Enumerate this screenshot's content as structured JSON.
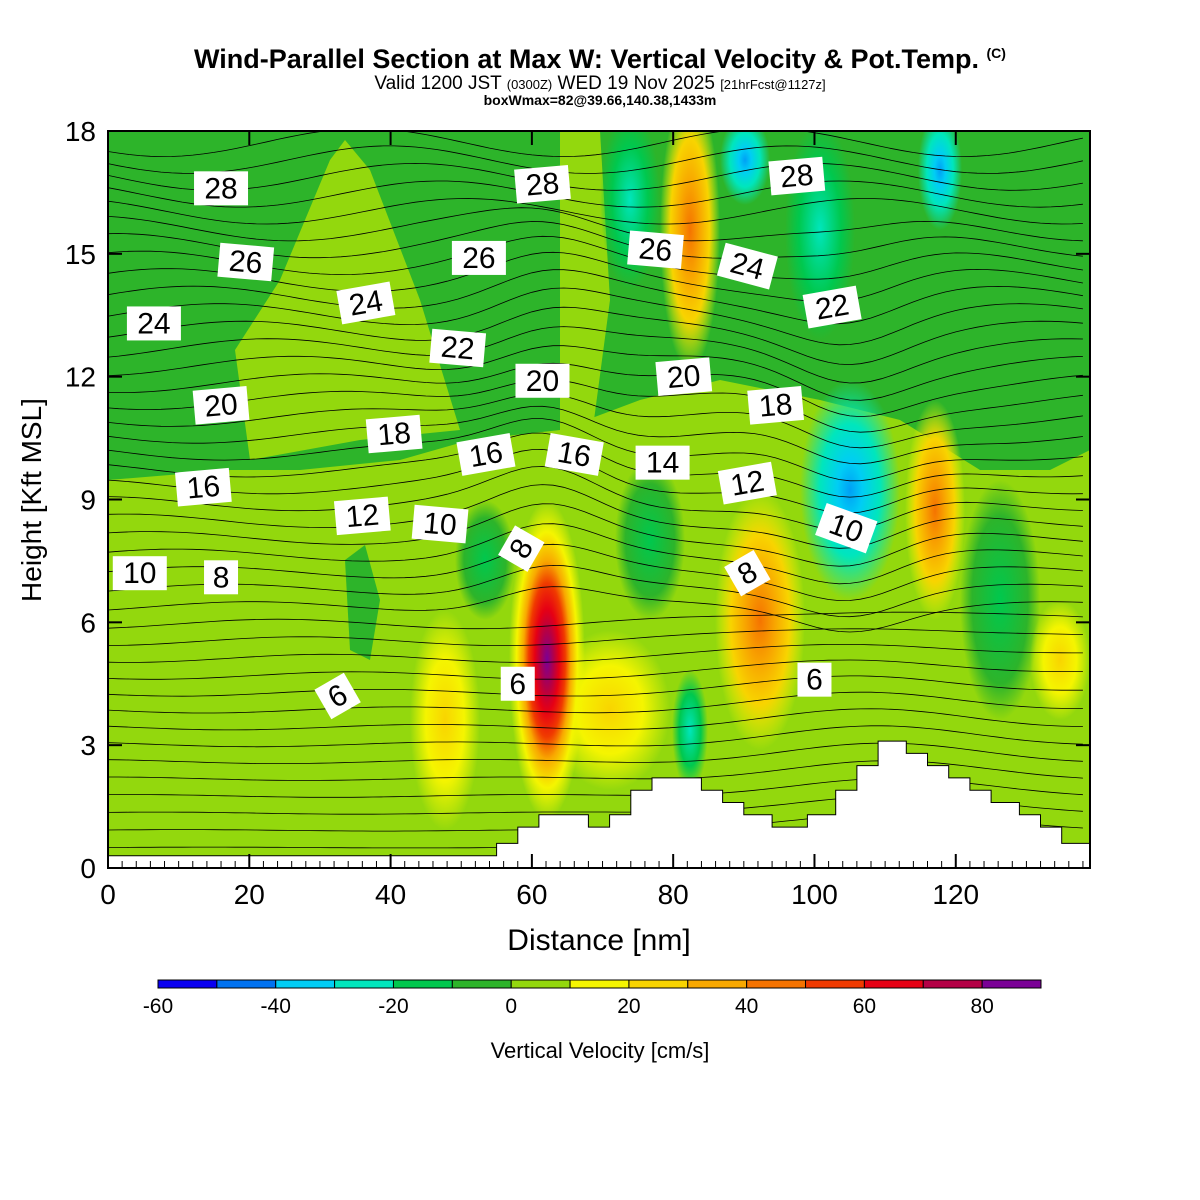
{
  "title": {
    "main": "Wind-Parallel Section at Max W: Vertical Velocity & Pot.Temp.",
    "copyright": "(C)",
    "valid_prefix": "Valid 1200 JST",
    "zulu": "(0300Z)",
    "valid_date": "WED 19 Nov 2025",
    "forecast": "[21hrFcst@1127z]",
    "box_max": "boxWmax=82@39.66,140.38,1433m"
  },
  "chart_data": {
    "type": "heatmap",
    "xlabel": "Distance [nm]",
    "ylabel": "Height [Kft MSL]",
    "xlim": [
      0,
      139
    ],
    "ylim": [
      0,
      18
    ],
    "x_ticks": [
      "0",
      "20",
      "40",
      "60",
      "80",
      "100",
      "120"
    ],
    "y_ticks": [
      "0",
      "3",
      "6",
      "9",
      "12",
      "15",
      "18"
    ],
    "colorbar": {
      "label": "Vertical Velocity [cm/s]",
      "bounds": [
        -60,
        -50,
        -40,
        -30,
        -20,
        -10,
        0,
        10,
        20,
        30,
        40,
        50,
        60,
        70,
        80,
        90
      ],
      "tick_labels": [
        "-60",
        "-40",
        "-20",
        "0",
        "20",
        "40",
        "60",
        "80"
      ],
      "colors": [
        "#0a00f0",
        "#0072f0",
        "#00cdf5",
        "#00e6bc",
        "#00c84e",
        "#2db42a",
        "#93d80d",
        "#f5f500",
        "#f8d400",
        "#f8a800",
        "#f57300",
        "#f03a00",
        "#e60014",
        "#b40046",
        "#7a0096"
      ]
    },
    "background_level": "0 to 10",
    "terrain_nm_kft": [
      [
        0,
        0.3
      ],
      [
        55,
        0.3
      ],
      [
        55,
        0.6
      ],
      [
        58,
        0.6
      ],
      [
        58,
        1.0
      ],
      [
        61,
        1.0
      ],
      [
        61,
        1.3
      ],
      [
        68,
        1.3
      ],
      [
        68,
        1.0
      ],
      [
        71,
        1.0
      ],
      [
        71,
        1.3
      ],
      [
        74,
        1.3
      ],
      [
        74,
        1.9
      ],
      [
        77,
        1.9
      ],
      [
        77,
        2.2
      ],
      [
        84,
        2.2
      ],
      [
        84,
        1.9
      ],
      [
        87,
        1.9
      ],
      [
        87,
        1.6
      ],
      [
        90,
        1.6
      ],
      [
        90,
        1.3
      ],
      [
        94,
        1.3
      ],
      [
        94,
        1.0
      ],
      [
        99,
        1.0
      ],
      [
        99,
        1.3
      ],
      [
        103,
        1.3
      ],
      [
        103,
        1.9
      ],
      [
        106,
        1.9
      ],
      [
        106,
        2.5
      ],
      [
        109,
        2.5
      ],
      [
        109,
        3.1
      ],
      [
        113,
        3.1
      ],
      [
        113,
        2.8
      ],
      [
        116,
        2.8
      ],
      [
        116,
        2.5
      ],
      [
        119,
        2.5
      ],
      [
        119,
        2.2
      ],
      [
        122,
        2.2
      ],
      [
        122,
        1.9
      ],
      [
        125,
        1.9
      ],
      [
        125,
        1.6
      ],
      [
        129,
        1.6
      ],
      [
        129,
        1.3
      ],
      [
        132,
        1.3
      ],
      [
        132,
        1.0
      ],
      [
        135,
        1.0
      ],
      [
        135,
        0.6
      ],
      [
        139,
        0.6
      ]
    ],
    "theta_contour_labels": [
      {
        "value": "28",
        "x": 16,
        "y": 16.6,
        "angle": 0
      },
      {
        "value": "28",
        "x": 61.5,
        "y": 16.7,
        "angle": -5
      },
      {
        "value": "28",
        "x": 97.5,
        "y": 16.9,
        "angle": -5
      },
      {
        "value": "26",
        "x": 19.5,
        "y": 14.8,
        "angle": 5
      },
      {
        "value": "26",
        "x": 52.5,
        "y": 14.9,
        "angle": 0
      },
      {
        "value": "26",
        "x": 77.5,
        "y": 15.1,
        "angle": 5
      },
      {
        "value": "24",
        "x": 6.5,
        "y": 13.3,
        "angle": 0
      },
      {
        "value": "24",
        "x": 36.5,
        "y": 13.8,
        "angle": -10
      },
      {
        "value": "24",
        "x": 90.5,
        "y": 14.7,
        "angle": 15
      },
      {
        "value": "22",
        "x": 49.5,
        "y": 12.7,
        "angle": 5
      },
      {
        "value": "22",
        "x": 102.5,
        "y": 13.7,
        "angle": -10
      },
      {
        "value": "20",
        "x": 16,
        "y": 11.3,
        "angle": -5
      },
      {
        "value": "20",
        "x": 61.5,
        "y": 11.9,
        "angle": 0
      },
      {
        "value": "20",
        "x": 81.5,
        "y": 12.0,
        "angle": -5
      },
      {
        "value": "18",
        "x": 40.5,
        "y": 10.6,
        "angle": -5
      },
      {
        "value": "18",
        "x": 94.5,
        "y": 11.3,
        "angle": -5
      },
      {
        "value": "16",
        "x": 13.5,
        "y": 9.3,
        "angle": -5
      },
      {
        "value": "16",
        "x": 53.5,
        "y": 10.1,
        "angle": -10
      },
      {
        "value": "16",
        "x": 66,
        "y": 10.1,
        "angle": 10
      },
      {
        "value": "14",
        "x": 78.5,
        "y": 9.9,
        "angle": 0
      },
      {
        "value": "12",
        "x": 36,
        "y": 8.6,
        "angle": -5
      },
      {
        "value": "12",
        "x": 90.5,
        "y": 9.4,
        "angle": -10
      },
      {
        "value": "10",
        "x": 4.5,
        "y": 7.2,
        "angle": 0
      },
      {
        "value": "10",
        "x": 47,
        "y": 8.4,
        "angle": 5
      },
      {
        "value": "10",
        "x": 104.5,
        "y": 8.3,
        "angle": 20
      },
      {
        "value": "8",
        "x": 16,
        "y": 7.1,
        "angle": 0
      },
      {
        "value": "8",
        "x": 58.5,
        "y": 7.8,
        "angle": -60
      },
      {
        "value": "8",
        "x": 90.5,
        "y": 7.2,
        "angle": -30
      },
      {
        "value": "6",
        "x": 32.5,
        "y": 4.2,
        "angle": -30
      },
      {
        "value": "6",
        "x": 58,
        "y": 4.5,
        "angle": 0
      },
      {
        "value": "6",
        "x": 100,
        "y": 4.6,
        "angle": 0
      }
    ]
  }
}
